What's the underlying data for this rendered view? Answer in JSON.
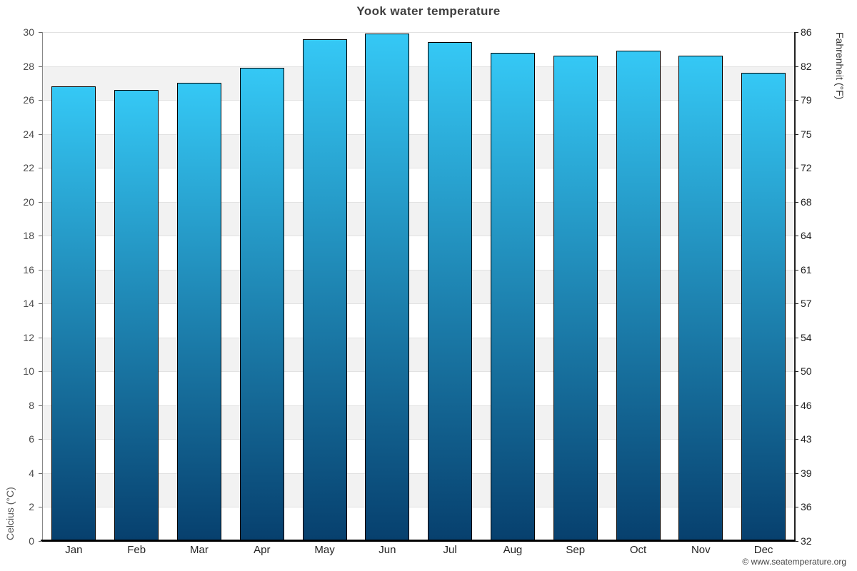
{
  "header": {
    "title": "Yook water temperature"
  },
  "chart_data": {
    "type": "bar",
    "title": "Yook water temperature",
    "categories": [
      "Jan",
      "Feb",
      "Mar",
      "Apr",
      "May",
      "Jun",
      "Jul",
      "Aug",
      "Sep",
      "Oct",
      "Nov",
      "Dec"
    ],
    "values": [
      26.8,
      26.6,
      27.0,
      27.9,
      29.6,
      29.9,
      29.4,
      28.8,
      28.6,
      28.9,
      28.6,
      27.6
    ],
    "series_name": "Water temperature (°C)",
    "ylabel_left": "Celcius (°C)",
    "ylabel_right": "Fahrenheit (°F)",
    "ylim": [
      0,
      30
    ],
    "celsius_ticks": [
      0,
      2,
      4,
      6,
      8,
      10,
      12,
      14,
      16,
      18,
      20,
      22,
      24,
      26,
      28,
      30
    ],
    "fahrenheit_ticks": [
      "32",
      "36",
      "39",
      "43",
      "46",
      "50",
      "54",
      "57",
      "61",
      "64",
      "68",
      "72",
      "75",
      "79",
      "82",
      "86"
    ],
    "legend_position": "none",
    "grid": "horizontal alternating bands every 2°C",
    "colors": {
      "bar_top": "#35c8f5",
      "bar_bottom": "#07406e",
      "bar_border": "#000000",
      "band_shade": "#f2f2f2",
      "gridline": "#e2e2e2",
      "title_color": "#3e3e3e",
      "left_tick_color": "#4a4a4a",
      "right_tick_color": "#222222"
    }
  },
  "footer": {
    "copyright": "© www.seatemperature.org"
  }
}
